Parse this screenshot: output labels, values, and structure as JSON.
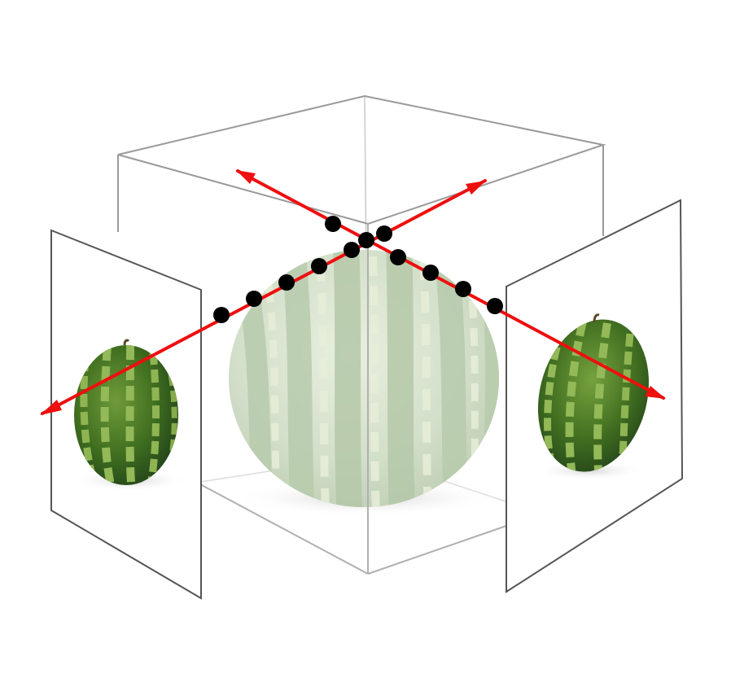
{
  "scene": {
    "description_icons": [
      "cube-wireframe",
      "watermelon",
      "image-plane",
      "ray-arrow",
      "sample-point"
    ],
    "colors": {
      "background": "#ffffff",
      "cube_edge": "#9a9a9a",
      "cube_edge_dim": "#c8c8c8",
      "plane_border": "#555555",
      "ray": "#ee0f0f",
      "point": "#000000",
      "melon_dark": "#2f5a18",
      "melon_mid": "#4c7f27",
      "melon_light": "#9dbc5a",
      "ghost_melon_base": "#c9d8be",
      "ghost_melon_stripe": "#a9c09a",
      "ghost_melon_light": "#e0e8c8"
    },
    "left_ray": {
      "sample_count": 5
    },
    "right_ray": {
      "sample_count": 5
    },
    "top_ray_left": {
      "sample_count": 1
    }
  }
}
